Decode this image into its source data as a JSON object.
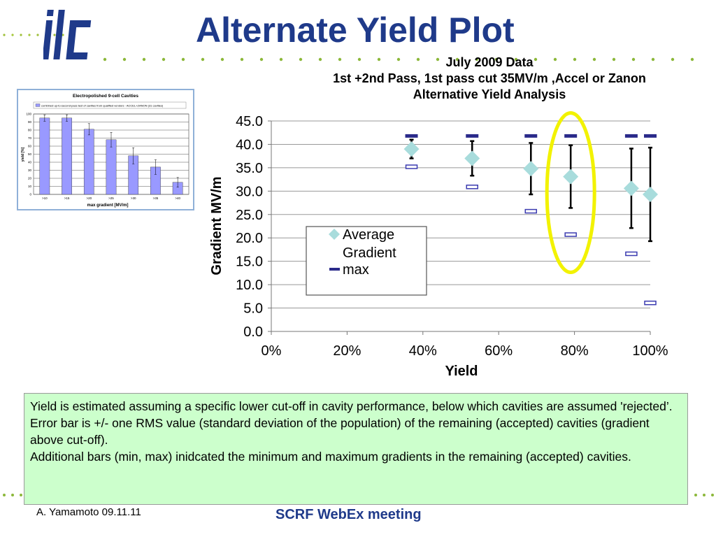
{
  "slide": {
    "title": "Alternate Yield Plot",
    "subtitle_lines": [
      "July 2009 Data",
      "1st +2nd Pass, 1st pass cut 35MV/m ,Accel or Zanon",
      "Alternative Yield Analysis"
    ],
    "logo_text": "ilc",
    "note_lines": [
      "Yield is estimated assuming a specific lower cut-off in cavity performance, below which cavities are assumed 'rejected’.",
      "Error bar is +/- one RMS value (standard deviation of the  population) of the remaining (accepted) cavities (gradient above cut-off).",
      "Additional bars (min, max) inidcated the minimum and maximum gradients in the remaining (accepted) cavities."
    ],
    "footer_left": "A. Yamamoto 09.11.11",
    "footer_center": "SCRF WebEx meeting"
  },
  "colors": {
    "title_blue": "#1f3a8a",
    "diamond": "#a8dcdc",
    "max_bar": "#2a2a8a",
    "min_bar": "#3b3bb0",
    "highlight": "#f2f200",
    "note_bg": "#ccffcc",
    "inset_bar": "#9999ff"
  },
  "chart_data": [
    {
      "type": "scatter",
      "xlabel": "Yield",
      "ylabel": "Gradient MV/m",
      "xlim": [
        0,
        1
      ],
      "ylim": [
        0,
        45
      ],
      "x_ticks": [
        "0%",
        "20%",
        "40%",
        "60%",
        "80%",
        "100%"
      ],
      "x_tick_values": [
        0,
        0.2,
        0.4,
        0.6,
        0.8,
        1.0
      ],
      "y_ticks": [
        "0.0",
        "5.0",
        "10.0",
        "15.0",
        "20.0",
        "25.0",
        "30.0",
        "35.0",
        "40.0",
        "45.0"
      ],
      "y_tick_values": [
        0,
        5,
        10,
        15,
        20,
        25,
        30,
        35,
        40,
        45
      ],
      "grid": true,
      "legend_position": "left",
      "legend": [
        {
          "label": "Average Gradient",
          "label_lines": [
            "Average",
            "Gradient"
          ],
          "marker": "diamond"
        },
        {
          "label": "max",
          "marker": "dash"
        }
      ],
      "series": [
        {
          "name": "Average Gradient",
          "x": [
            0.37,
            0.53,
            0.685,
            0.79,
            0.95,
            1.0
          ],
          "y": [
            39.0,
            37.0,
            34.8,
            33.1,
            30.6,
            29.3
          ],
          "err": [
            2.0,
            3.7,
            5.5,
            6.7,
            8.5,
            10.0
          ]
        },
        {
          "name": "max",
          "x": [
            0.37,
            0.53,
            0.685,
            0.79,
            0.95,
            1.0
          ],
          "y": [
            41.8,
            41.8,
            41.8,
            41.8,
            41.8,
            41.8
          ]
        },
        {
          "x": [
            0.37,
            0.53,
            0.685,
            0.79,
            0.95,
            1.0
          ],
          "y": [
            35.2,
            30.9,
            25.7,
            20.7,
            16.6,
            6.1
          ]
        }
      ],
      "highlight_x": 0.79
    },
    {
      "type": "bar",
      "title": "Electropolished 9-cell Cavities",
      "legend": "combined up-to-second-pass test of cavities from qualified vendors - ACCEL+ZANON (31 cavities)",
      "xlabel": "max gradient [MV/m]",
      "ylabel": "yield [%]",
      "ylim": [
        0,
        100
      ],
      "y_ticks": [
        "0",
        "10",
        "20",
        "30",
        "40",
        "50",
        "60",
        "70",
        "80",
        "90",
        "100"
      ],
      "categories": [
        ">10",
        ">15",
        ">20",
        ">25",
        ">30",
        ">35",
        ">40"
      ],
      "values": [
        95,
        95,
        81,
        68,
        48,
        34,
        15
      ],
      "err": [
        4,
        4,
        7,
        9,
        10,
        9,
        6
      ]
    }
  ]
}
